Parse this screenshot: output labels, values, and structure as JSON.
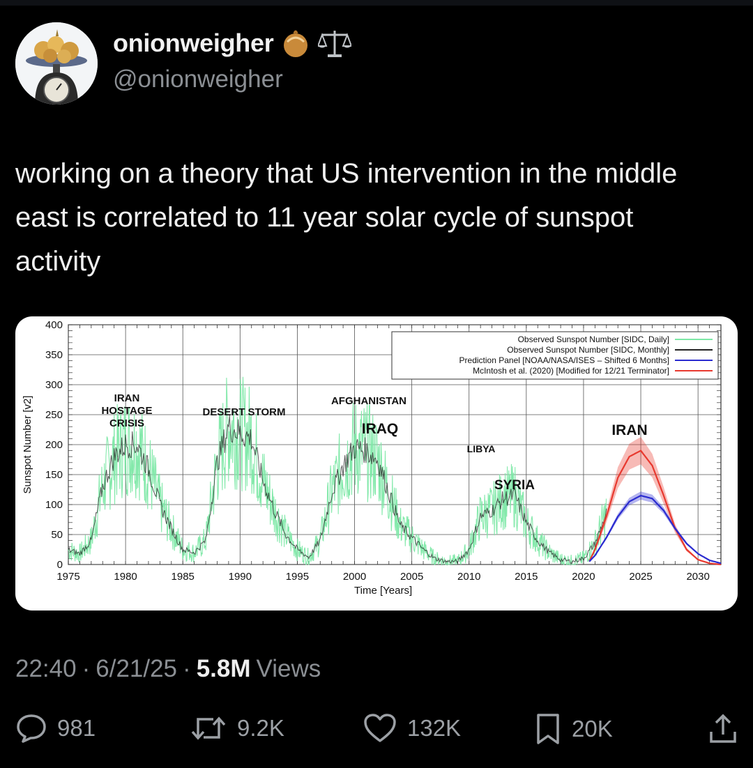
{
  "author": {
    "display_name": "onionweigher",
    "handle": "@onionweigher",
    "name_emoji_icons": [
      "onion-icon",
      "balance-scale-icon"
    ]
  },
  "tweet": {
    "text": "working on a theory that US intervention in the middle east is correlated to 11 year solar cycle of sunspot activity",
    "time": "22:40",
    "date": "6/21/25",
    "views_count": "5.8M",
    "views_label": "Views"
  },
  "actions": {
    "replies": "981",
    "reposts": "9.2K",
    "likes": "132K",
    "bookmarks": "20K"
  },
  "chart_data": {
    "type": "line",
    "xlabel": "Time [Years]",
    "ylabel": "Sunspot Number [v2]",
    "xlim": [
      1975,
      2032
    ],
    "ylim": [
      0,
      400
    ],
    "x_ticks": [
      "1975",
      "1980",
      "1985",
      "1990",
      "1995",
      "2000",
      "2005",
      "2010",
      "2015",
      "2020",
      "2025",
      "2030"
    ],
    "y_ticks": [
      "0",
      "50",
      "100",
      "150",
      "200",
      "250",
      "300",
      "350",
      "400"
    ],
    "legend": [
      {
        "label": "Observed Sunspot Number [SIDC, Daily]",
        "color": "#7de8a6"
      },
      {
        "label": "Observed Sunspot Number [SIDC, Monthly]",
        "color": "#222222"
      },
      {
        "label": "Prediction Panel [NOAA/NASA/ISES – Shifted 6 Months]",
        "color": "#2a2bd0"
      },
      {
        "label": "McIntosh et al. (2020) [Modified for 12/21 Terminator]",
        "color": "#e8392f"
      }
    ],
    "legend_position": "top-right",
    "grid": true,
    "annotations": [
      {
        "lines": [
          "IRAN",
          "HOSTAGE",
          "CRISIS"
        ],
        "year": 1980
      },
      {
        "lines": [
          "DESERT STORM"
        ],
        "year": 1991
      },
      {
        "lines": [
          "AFGHANISTAN"
        ],
        "year": 2001
      },
      {
        "lines": [
          "IRAQ"
        ],
        "year": 2003
      },
      {
        "lines": [
          "LIBYA"
        ],
        "year": 2011
      },
      {
        "lines": [
          "SYRIA"
        ],
        "year": 2014
      },
      {
        "lines": [
          "IRAN"
        ],
        "year": 2025
      }
    ],
    "series": [
      {
        "name": "Observed Sunspot Number [SIDC, Monthly]",
        "x": [
          1975,
          1976,
          1977,
          1978,
          1979,
          1980,
          1981,
          1982,
          1983,
          1984,
          1985,
          1986,
          1987,
          1988,
          1989,
          1990,
          1991,
          1992,
          1993,
          1994,
          1995,
          1996,
          1997,
          1998,
          1999,
          2000,
          2001,
          2002,
          2003,
          2004,
          2005,
          2006,
          2007,
          2008,
          2009,
          2010,
          2011,
          2012,
          2013,
          2014,
          2015,
          2016,
          2017,
          2018,
          2019,
          2020,
          2021,
          2022
        ],
        "y": [
          24,
          18,
          40,
          130,
          180,
          200,
          200,
          160,
          100,
          60,
          25,
          20,
          40,
          170,
          230,
          220,
          210,
          140,
          90,
          50,
          25,
          12,
          40,
          120,
          165,
          195,
          190,
          175,
          120,
          65,
          45,
          25,
          10,
          5,
          5,
          25,
          80,
          90,
          110,
          115,
          70,
          40,
          20,
          8,
          5,
          10,
          35,
          85
        ]
      },
      {
        "name": "Prediction Panel [NOAA/NASA/ISES – Shifted 6 Months]",
        "x": [
          2020.5,
          2021,
          2022,
          2023,
          2024,
          2025,
          2026,
          2027,
          2028,
          2029,
          2030,
          2031,
          2032
        ],
        "y": [
          5,
          15,
          45,
          80,
          105,
          115,
          110,
          90,
          60,
          35,
          18,
          7,
          2
        ]
      },
      {
        "name": "McIntosh et al. (2020) [Modified for 12/21 Terminator]",
        "x": [
          2020.5,
          2021,
          2022,
          2023,
          2024,
          2025,
          2026,
          2027,
          2028,
          2029,
          2030,
          2031,
          2032
        ],
        "y": [
          5,
          25,
          80,
          145,
          180,
          190,
          165,
          115,
          60,
          25,
          8,
          2,
          0
        ]
      }
    ]
  }
}
